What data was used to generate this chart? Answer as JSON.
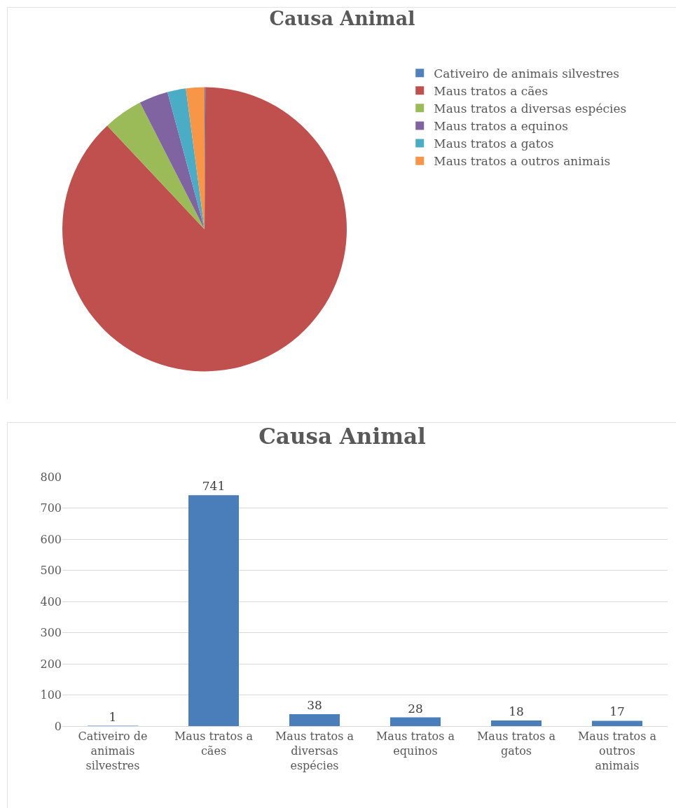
{
  "chart_data": [
    {
      "type": "pie",
      "title": "Causa Animal",
      "categories": [
        "Cativeiro de animais silvestres",
        "Maus tratos a cães",
        "Maus tratos a diversas espécies",
        "Maus tratos a equinos",
        "Maus tratos a gatos",
        "Maus tratos a outros animais"
      ],
      "values": [
        0.1,
        87.9,
        4.5,
        3.3,
        2.1,
        2.1
      ],
      "colors": [
        "#4f81bd",
        "#c0504d",
        "#9bbb59",
        "#8064a2",
        "#4bacc6",
        "#f79646"
      ],
      "legend": "top right"
    },
    {
      "type": "bar",
      "title": "Causa Animal",
      "categories": [
        "Cativeiro de animais silvestres",
        "Maus tratos a cães",
        "Maus tratos a diversas espécies",
        "Maus tratos a equinos",
        "Maus tratos a gatos",
        "Maus tratos a outros animais"
      ],
      "values": [
        1,
        741,
        38,
        28,
        18,
        17
      ],
      "color": "#4a7ebb",
      "ylim": [
        0,
        800
      ],
      "yticks": [
        0,
        100,
        200,
        300,
        400,
        500,
        600,
        700,
        800
      ],
      "grid": "y",
      "data_labels": true
    }
  ]
}
